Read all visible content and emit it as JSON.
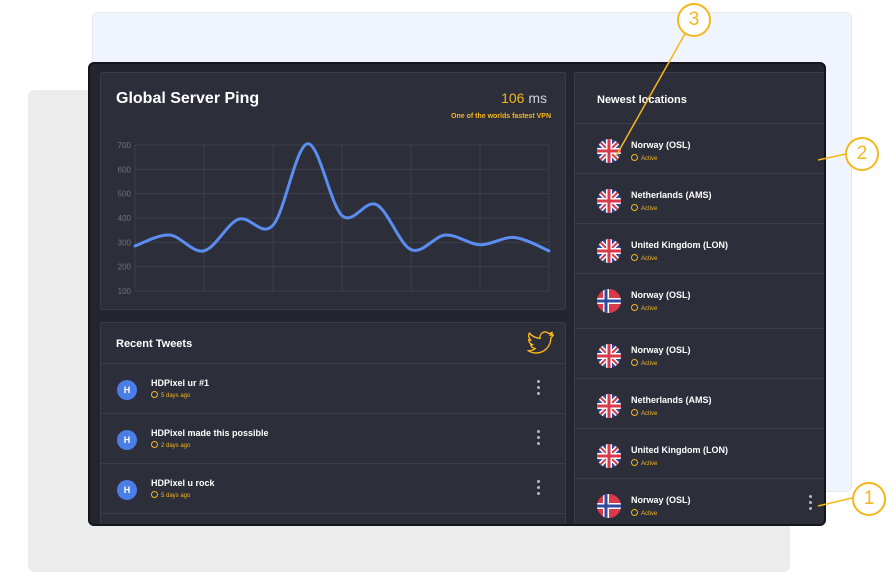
{
  "ping": {
    "title": "Global Server Ping",
    "value": "106",
    "unit": "ms",
    "subtitle": "One of the worlds fastest VPN",
    "chart_data": {
      "type": "line",
      "title": "",
      "xlabel": "",
      "ylabel": "",
      "ylim": [
        100,
        700
      ],
      "yticks": [
        700,
        600,
        500,
        400,
        300,
        200,
        100
      ],
      "grid": true,
      "color": "#5b8ef0",
      "x": [
        0,
        1,
        2,
        3,
        4,
        5,
        6,
        7,
        8,
        9,
        10,
        11,
        12
      ],
      "values": [
        285,
        330,
        265,
        395,
        370,
        705,
        410,
        455,
        270,
        330,
        290,
        320,
        265
      ]
    }
  },
  "tweets": {
    "title": "Recent Tweets",
    "icon": "twitter-bird-icon",
    "items": [
      {
        "avatar": "H",
        "name": "HDPixel ur #1",
        "time": "5 days ago"
      },
      {
        "avatar": "H",
        "name": "HDPixel made this possible",
        "time": "2 days ago"
      },
      {
        "avatar": "H",
        "name": "HDPixel u rock",
        "time": "5 days ago"
      }
    ]
  },
  "locations": {
    "title": "Newest locations",
    "items": [
      {
        "name": "Norway (OSL)",
        "status": "Active",
        "flag": "uk"
      },
      {
        "name": "Netherlands (AMS)",
        "status": "Active",
        "flag": "uk"
      },
      {
        "name": "United Kingdom (LON)",
        "status": "Active",
        "flag": "uk"
      },
      {
        "name": "Norway (OSL)",
        "status": "Active",
        "flag": "norway"
      },
      {
        "name": "Norway (OSL)",
        "status": "Active",
        "flag": "uk"
      },
      {
        "name": "Netherlands (AMS)",
        "status": "Active",
        "flag": "uk"
      },
      {
        "name": "United Kingdom (LON)",
        "status": "Active",
        "flag": "uk"
      },
      {
        "name": "Norway (OSL)",
        "status": "Active",
        "flag": "norway"
      }
    ]
  },
  "callouts": [
    "1",
    "2",
    "3"
  ],
  "colors": {
    "accent": "#f5b71a",
    "panel": "#24252f",
    "card": "#2c2e3a",
    "line": "#5b8ef0",
    "avatar": "#4a7de8"
  }
}
